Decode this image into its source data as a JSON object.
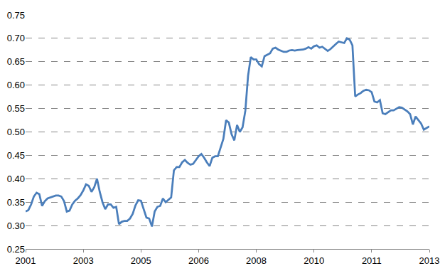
{
  "chart_data": {
    "type": "line",
    "color": "#4a7ebb",
    "grid": true,
    "line_style": "dash",
    "categories": [
      "2001",
      null,
      null,
      null,
      null,
      null,
      null,
      null,
      null,
      null,
      null,
      null,
      null,
      null,
      null,
      null,
      null,
      null,
      null,
      null,
      null,
      "2003",
      null,
      null,
      null,
      null,
      null,
      null,
      null,
      null,
      null,
      null,
      null,
      null,
      null,
      null,
      null,
      null,
      null,
      null,
      null,
      null,
      "2005",
      null,
      null,
      null,
      null,
      null,
      null,
      null,
      null,
      null,
      null,
      null,
      null,
      null,
      null,
      null,
      null,
      null,
      null,
      null,
      null,
      "2006",
      null,
      null,
      null,
      null,
      null,
      null,
      null,
      null,
      null,
      null,
      null,
      null,
      null,
      null,
      null,
      null,
      null,
      null,
      null,
      null,
      "2008",
      null,
      null,
      null,
      null,
      null,
      null,
      null,
      null,
      null,
      null,
      null,
      null,
      null,
      null,
      null,
      null,
      null,
      null,
      null,
      null,
      "2010",
      null,
      null,
      null,
      null,
      null,
      null,
      null,
      null,
      null,
      null,
      null,
      null,
      null,
      null,
      null,
      null,
      null,
      null,
      null,
      null,
      "2011",
      null,
      null,
      null,
      null,
      null,
      null,
      null,
      null,
      null,
      null,
      null,
      null,
      null,
      null,
      null,
      null,
      null,
      null,
      null,
      null,
      "2013"
    ],
    "values": [
      0.33,
      0.333,
      0.345,
      0.362,
      0.37,
      0.367,
      0.342,
      0.352,
      0.358,
      0.36,
      0.362,
      0.364,
      0.364,
      0.362,
      0.352,
      0.33,
      0.332,
      0.345,
      0.353,
      0.358,
      0.365,
      0.375,
      0.388,
      0.385,
      0.372,
      0.382,
      0.4,
      0.372,
      0.35,
      0.335,
      0.345,
      0.345,
      0.338,
      0.34,
      0.303,
      0.308,
      0.31,
      0.31,
      0.315,
      0.325,
      0.343,
      0.354,
      0.353,
      0.335,
      0.317,
      0.315,
      0.298,
      0.33,
      0.34,
      0.342,
      0.358,
      0.35,
      0.355,
      0.36,
      0.418,
      0.425,
      0.425,
      0.435,
      0.44,
      0.434,
      0.43,
      0.432,
      0.44,
      0.448,
      0.453,
      0.445,
      0.435,
      0.427,
      0.445,
      0.448,
      0.448,
      0.465,
      0.485,
      0.525,
      0.52,
      0.495,
      0.482,
      0.515,
      0.5,
      0.51,
      0.545,
      0.62,
      0.66,
      0.655,
      0.655,
      0.645,
      0.64,
      0.662,
      0.665,
      0.668,
      0.678,
      0.68,
      0.676,
      0.673,
      0.671,
      0.671,
      0.674,
      0.675,
      0.674,
      0.675,
      0.675,
      0.676,
      0.678,
      0.681,
      0.678,
      0.683,
      0.685,
      0.68,
      0.682,
      0.677,
      0.673,
      0.677,
      0.683,
      0.688,
      0.693,
      0.692,
      0.69,
      0.7,
      0.697,
      0.685,
      0.576,
      0.58,
      0.583,
      0.588,
      0.59,
      0.589,
      0.585,
      0.565,
      0.563,
      0.568,
      0.54,
      0.538,
      0.542,
      0.546,
      0.546,
      0.55,
      0.553,
      0.552,
      0.548,
      0.544,
      0.538,
      0.516,
      0.533,
      0.525,
      0.518,
      0.505,
      0.508,
      0.512
    ],
    "ylim": [
      0.25,
      0.75
    ],
    "yticks": [
      0.25,
      {
        "value": 0.3,
        "label": "0.30"
      },
      0.35,
      {
        "value": 0.4,
        "label": "0.40"
      },
      0.45,
      {
        "value": 0.5,
        "label": "0.50"
      },
      0.55,
      {
        "value": 0.6,
        "label": "0.60"
      },
      0.65,
      {
        "value": 0.7,
        "label": "0.70"
      },
      0.75
    ]
  }
}
